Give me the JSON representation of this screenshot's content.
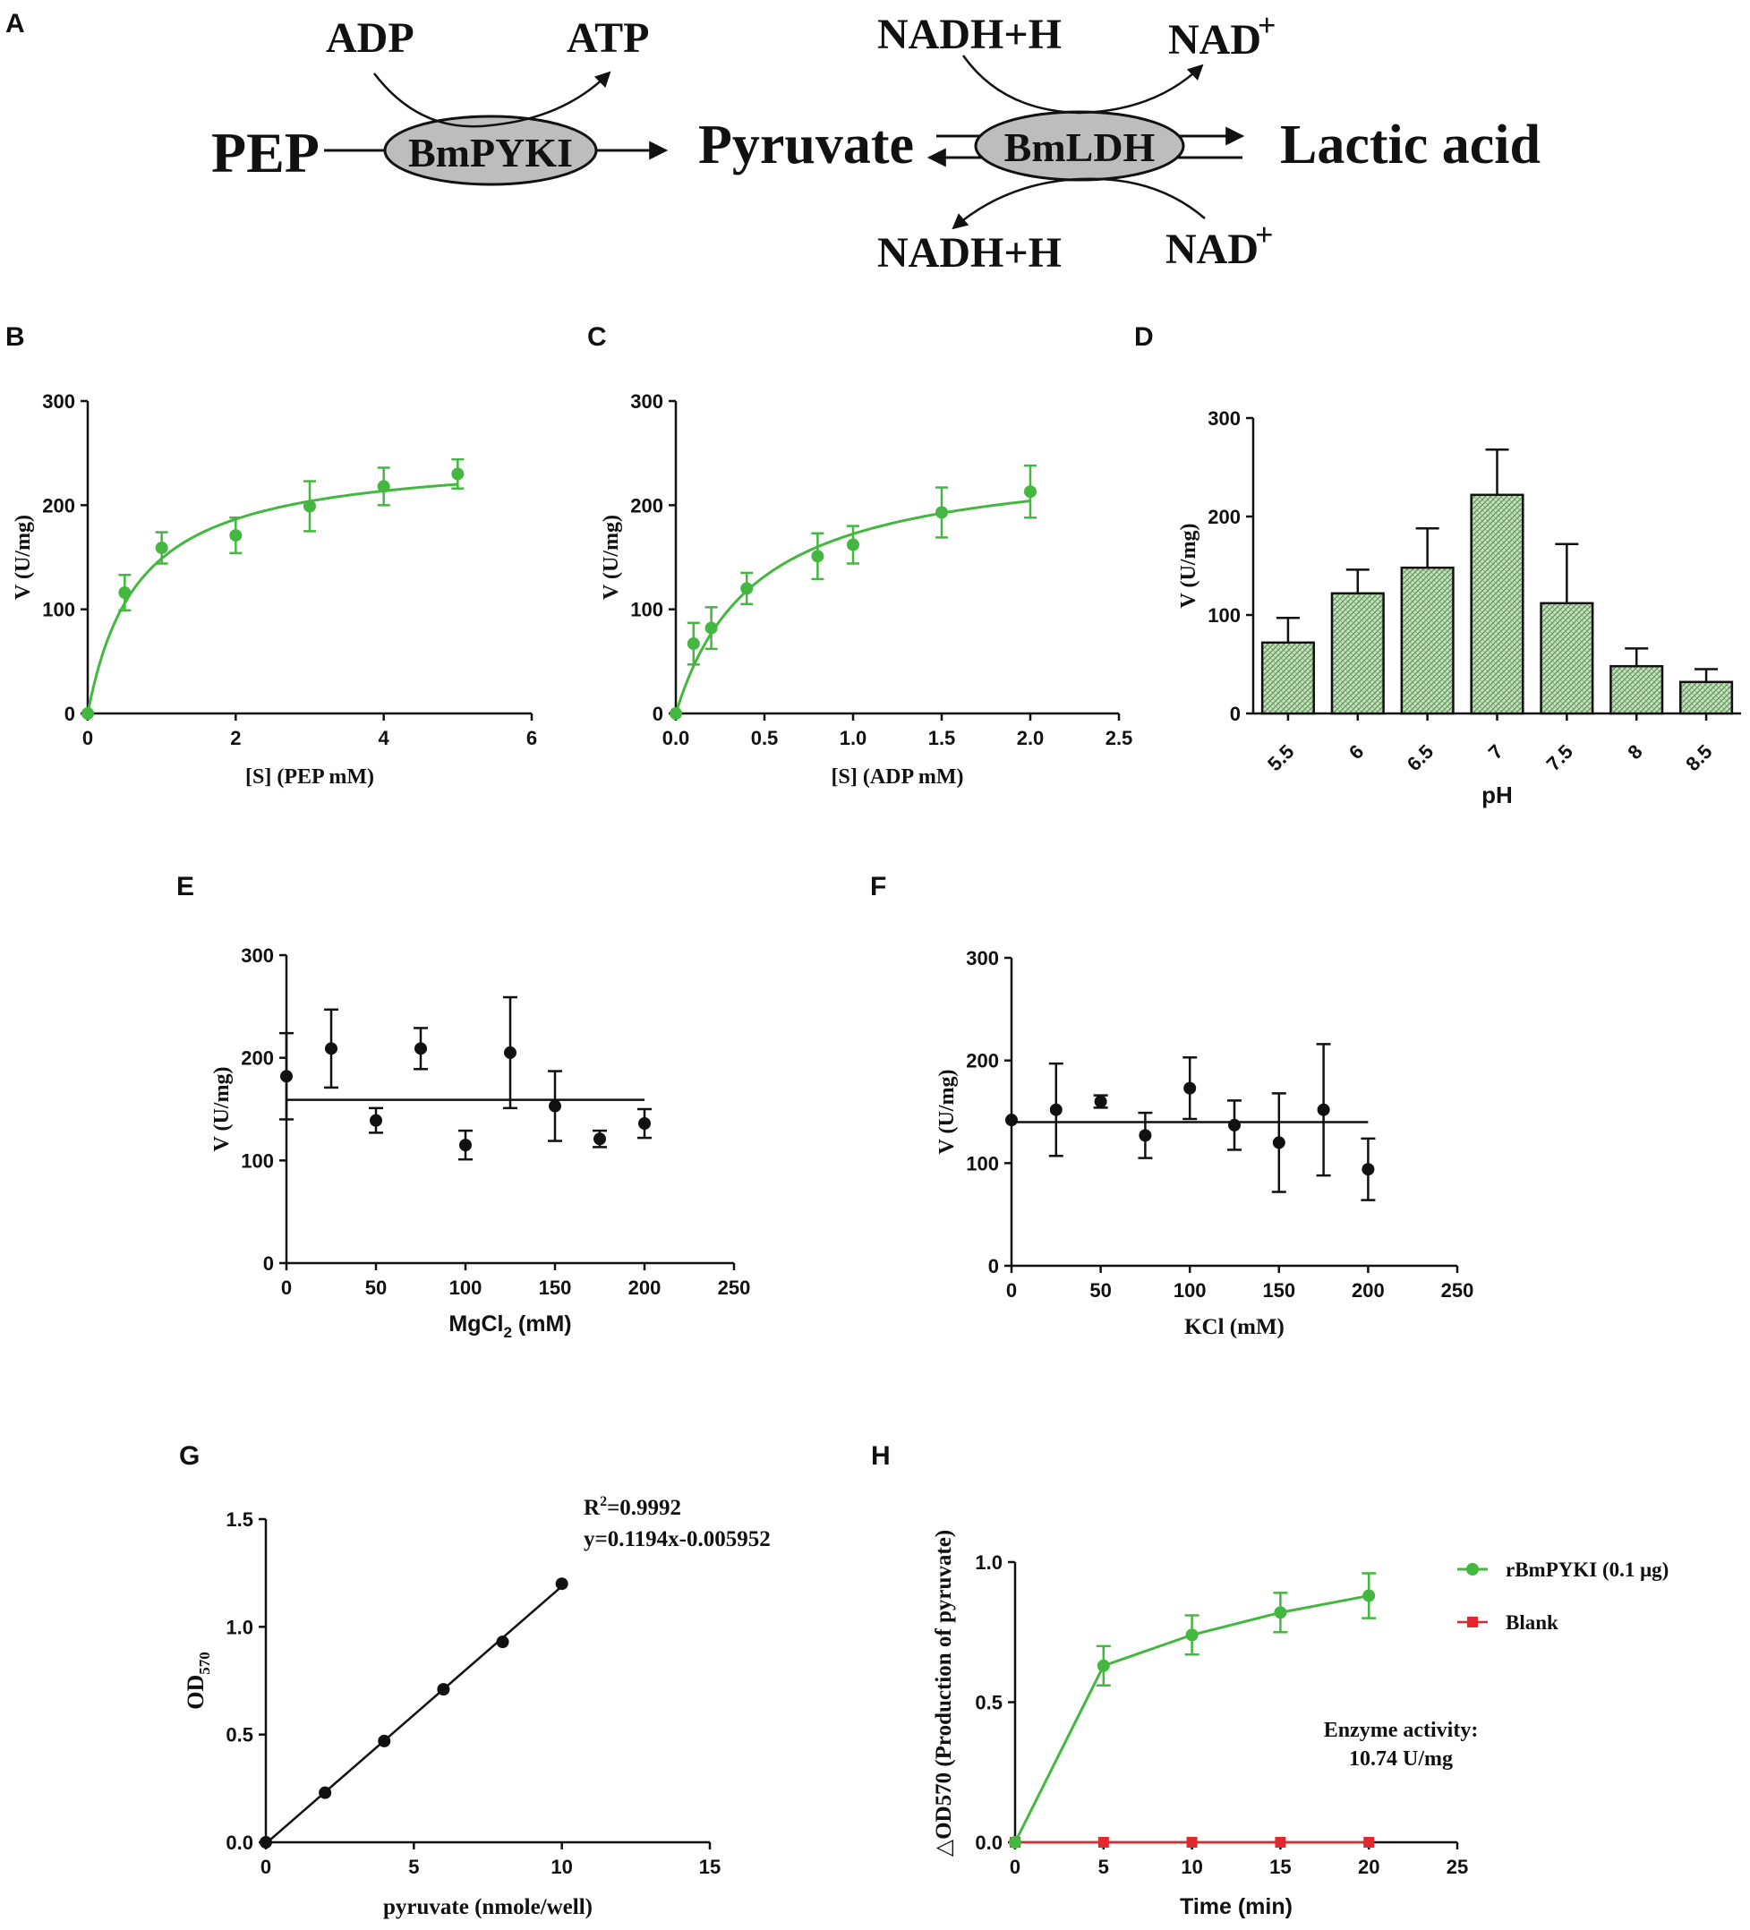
{
  "colors": {
    "green": "#43b73f",
    "red": "#e0282e",
    "black": "#111111",
    "enzyme_fill": "#bdbdbd",
    "bar_fill": "#b9d9b0"
  },
  "panel_letters": [
    "A",
    "B",
    "C",
    "D",
    "E",
    "F",
    "G",
    "H"
  ],
  "pathway": {
    "pep": "PEP",
    "enzyme1": "BmPYKI",
    "pyruvate": "Pyruvate",
    "enzyme2": "BmLDH",
    "lactic": "Lactic acid",
    "adp": "ADP",
    "atp": "ATP",
    "nadh_top": "NADH+H",
    "nad_top": "NAD",
    "nadh_bottom": "NADH+H",
    "nad_bottom": "NAD",
    "plus": "+"
  },
  "chart_data": [
    {
      "panel": "B",
      "type": "scatter",
      "x": [
        0,
        0.5,
        1,
        2,
        3,
        4,
        5
      ],
      "y": [
        0,
        116,
        159,
        171,
        199,
        218,
        230
      ],
      "err": [
        0,
        17,
        15,
        17,
        24,
        18,
        14
      ],
      "fit": "michaelis-menten",
      "vmax": 250,
      "km": 0.68,
      "xlim": [
        0,
        6
      ],
      "ylim": [
        0,
        300
      ],
      "xticks": [
        "0",
        "2",
        "4",
        "6"
      ],
      "yticks": [
        "0",
        "100",
        "200",
        "300"
      ],
      "xlabel": "[S] (PEP mM)",
      "ylabel": "V (U/mg)"
    },
    {
      "panel": "C",
      "type": "scatter",
      "x": [
        0,
        0.1,
        0.2,
        0.4,
        0.8,
        1.0,
        1.5,
        2.0
      ],
      "y": [
        0,
        67,
        82,
        120,
        151,
        162,
        193,
        213
      ],
      "err": [
        0,
        20,
        20,
        15,
        22,
        18,
        24,
        25
      ],
      "fit": "michaelis-menten",
      "vmax": 250,
      "km": 0.45,
      "xlim": [
        0,
        2.5
      ],
      "ylim": [
        0,
        300
      ],
      "xticks": [
        "0.0",
        "0.5",
        "1.0",
        "1.5",
        "2.0",
        "2.5"
      ],
      "yticks": [
        "0",
        "100",
        "200",
        "300"
      ],
      "xlabel": "[S] (ADP mM)",
      "ylabel": "V (U/mg)"
    },
    {
      "panel": "D",
      "type": "bar",
      "categories": [
        "5.5",
        "6",
        "6.5",
        "7",
        "7.5",
        "8",
        "8.5"
      ],
      "values": [
        72,
        122,
        148,
        222,
        112,
        48,
        32
      ],
      "err": [
        25,
        24,
        40,
        46,
        60,
        18,
        13
      ],
      "ylim": [
        0,
        300
      ],
      "yticks": [
        "0",
        "100",
        "200",
        "300"
      ],
      "xlabel": "pH",
      "ylabel": "V (U/mg)"
    },
    {
      "panel": "E",
      "type": "scatter",
      "x": [
        0,
        25,
        50,
        75,
        100,
        125,
        150,
        175,
        200
      ],
      "y": [
        182,
        209,
        139,
        209,
        115,
        205,
        153,
        121,
        136
      ],
      "err": [
        42,
        38,
        12,
        20,
        14,
        54,
        34,
        8,
        14
      ],
      "fit": "horizontal",
      "fit_value": 159,
      "xlim": [
        0,
        250
      ],
      "ylim": [
        0,
        300
      ],
      "xticks": [
        "0",
        "50",
        "100",
        "150",
        "200",
        "250"
      ],
      "yticks": [
        "0",
        "100",
        "200",
        "300"
      ],
      "xlabel_main": "MgCl",
      "xlabel_sub": "2",
      "xlabel_tail": " (mM)",
      "ylabel": "V (U/mg)"
    },
    {
      "panel": "F",
      "type": "scatter",
      "x": [
        0,
        25,
        50,
        75,
        100,
        125,
        150,
        175,
        200
      ],
      "y": [
        142,
        152,
        160,
        127,
        173,
        137,
        120,
        152,
        94
      ],
      "err": [
        0,
        45,
        6,
        22,
        30,
        24,
        48,
        64,
        30
      ],
      "fit": "horizontal",
      "fit_value": 140,
      "xlim": [
        0,
        250
      ],
      "ylim": [
        0,
        300
      ],
      "xticks": [
        "0",
        "50",
        "100",
        "150",
        "200",
        "250"
      ],
      "yticks": [
        "0",
        "100",
        "200",
        "300"
      ],
      "xlabel": "KCl (mM)",
      "ylabel": "V (U/mg)"
    },
    {
      "panel": "G",
      "type": "scatter",
      "x": [
        0,
        2,
        4,
        6,
        8,
        10
      ],
      "y": [
        0,
        0.23,
        0.47,
        0.71,
        0.93,
        1.2
      ],
      "fit": "linear",
      "slope": 0.1194,
      "intercept": -0.005952,
      "xlim": [
        0,
        15
      ],
      "ylim": [
        0,
        1.5
      ],
      "xticks": [
        "0",
        "5",
        "10",
        "15"
      ],
      "yticks": [
        "0.0",
        "0.5",
        "1.0",
        "1.5"
      ],
      "xlabel": "pyruvate (nmole/well)",
      "ylabel_main": "OD",
      "ylabel_sub": "570",
      "annotation_r2_main": "R",
      "annotation_r2_sup": "2",
      "annotation_r2_tail": "=0.9992",
      "annotation_eq": "y=0.1194x-0.005952"
    },
    {
      "panel": "H",
      "type": "line",
      "x": [
        0,
        5,
        10,
        15,
        20
      ],
      "series": [
        {
          "name": "rBmPYKI (0.1 μg)",
          "values": [
            0,
            0.63,
            0.74,
            0.82,
            0.88
          ],
          "err": [
            0,
            0.07,
            0.07,
            0.07,
            0.08
          ]
        },
        {
          "name": "Blank",
          "values": [
            0,
            0,
            0,
            0,
            0
          ]
        }
      ],
      "xlim": [
        0,
        25
      ],
      "ylim": [
        0,
        1.0
      ],
      "xticks": [
        "0",
        "5",
        "10",
        "15",
        "20",
        "25"
      ],
      "yticks": [
        "0.0",
        "0.5",
        "1.0"
      ],
      "xlabel": "Time (min)",
      "ylabel": "△OD570 (Production of pyruvate)",
      "legend": "top-right",
      "annotation_line1": "Enzyme activity:",
      "annotation_line2": "10.74 U/mg"
    }
  ]
}
